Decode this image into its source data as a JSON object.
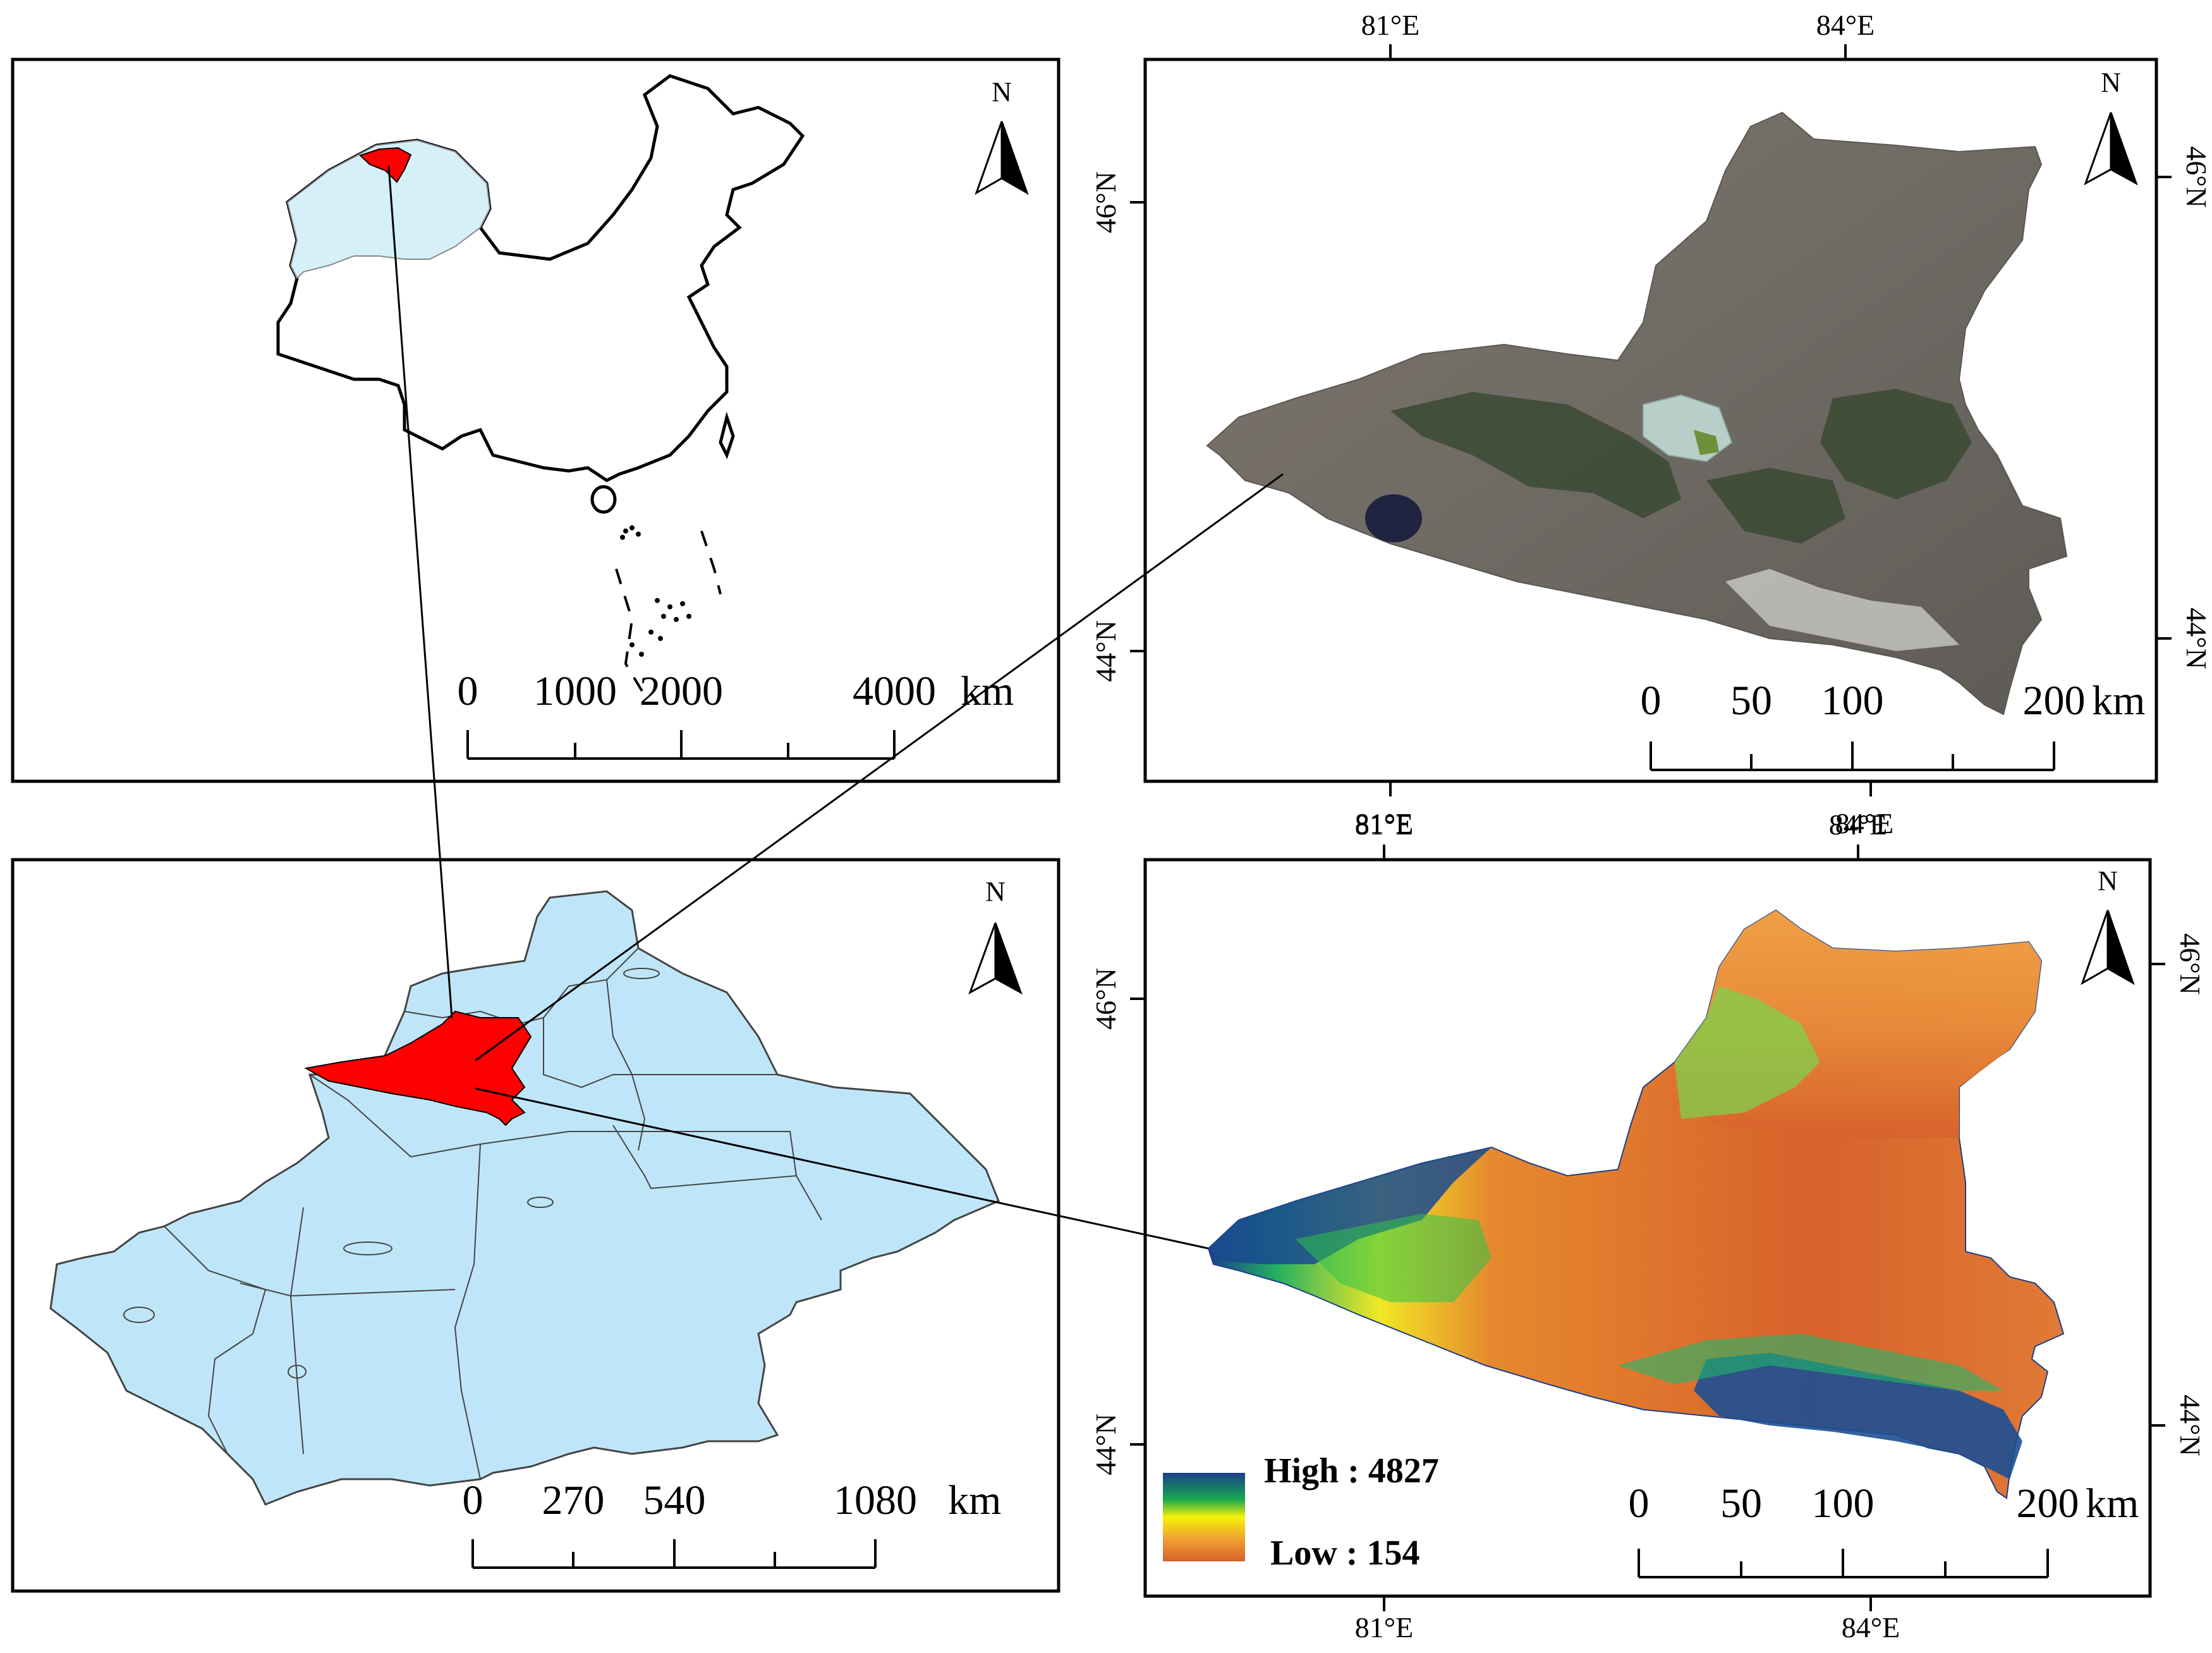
{
  "panels": {
    "china": {
      "north_label": "N",
      "scale": {
        "ticks": [
          "0",
          "1000",
          "2000",
          "4000"
        ],
        "unit": "km"
      }
    },
    "xinjiang": {
      "north_label": "N",
      "scale": {
        "ticks": [
          "0",
          "270",
          "540",
          "1080"
        ],
        "unit": "km"
      }
    },
    "satellite": {
      "north_label": "N",
      "longitudes": [
        "81°E",
        "84°E"
      ],
      "latitudes": [
        "46°N",
        "44°N"
      ],
      "scale": {
        "ticks": [
          "0",
          "50",
          "100",
          "200"
        ],
        "unit": "km"
      }
    },
    "dem": {
      "north_label": "N",
      "longitudes": [
        "81°E",
        "84°E"
      ],
      "latitudes": [
        "46°N",
        "44°N"
      ],
      "scale": {
        "ticks": [
          "0",
          "50",
          "100",
          "200"
        ],
        "unit": "km"
      },
      "legend": {
        "high": "High : 4827",
        "low": "Low : 154"
      }
    }
  },
  "colors": {
    "highlight": "#ff0000",
    "xinjiang_fill": "#bfe6f8",
    "china_xinjiang_fill": "#d6f0fa",
    "dem_high": "#1a3e8c",
    "dem_mid": "#f5f20a",
    "dem_low": "#d8602b"
  }
}
